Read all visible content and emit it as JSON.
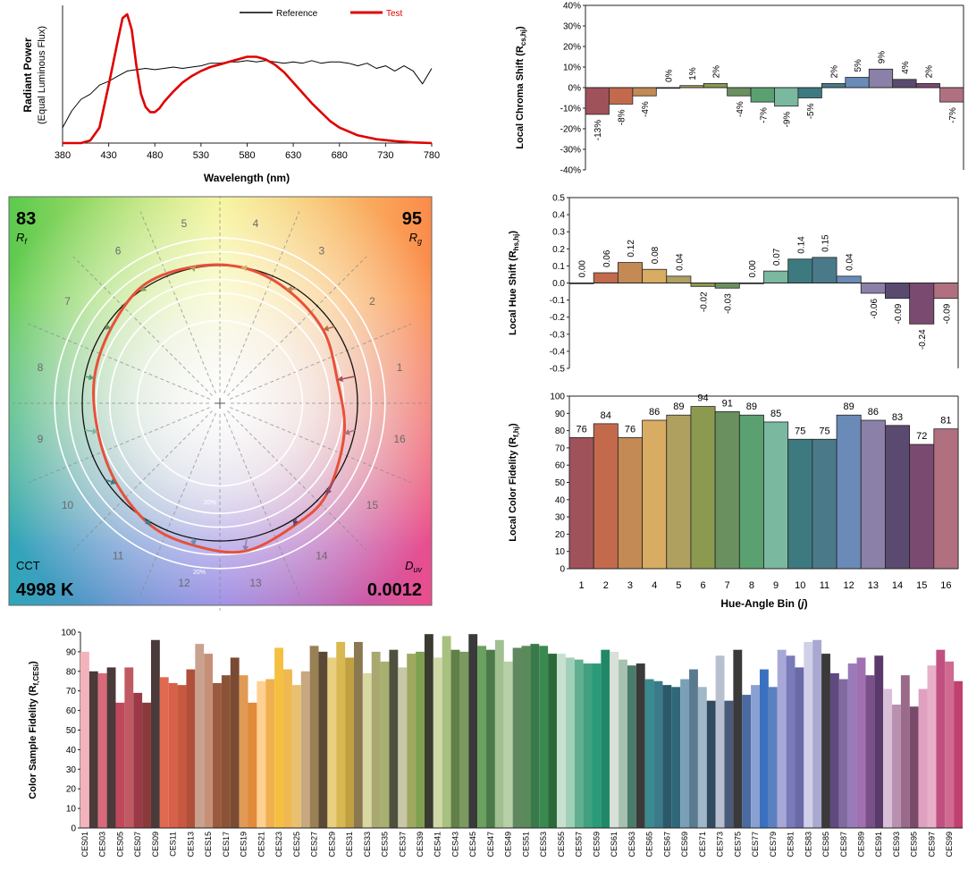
{
  "chart_data": [
    {
      "id": "spd",
      "type": "line",
      "ylabel": "Radiant Power",
      "ylabel_sub": "(Equal Luminous Flux)",
      "xlabel": "Wavelength (nm)",
      "xticks": [
        380,
        430,
        480,
        530,
        580,
        630,
        680,
        730,
        780
      ],
      "xlim": [
        380,
        780
      ],
      "legend": [
        "Reference",
        "Test"
      ],
      "colors": {
        "reference": "#000000",
        "test": "#e00000"
      },
      "series": [
        {
          "name": "Reference",
          "x": [
            380,
            390,
            400,
            410,
            420,
            430,
            440,
            450,
            460,
            470,
            480,
            490,
            500,
            510,
            520,
            530,
            540,
            550,
            560,
            570,
            580,
            590,
            600,
            610,
            620,
            630,
            640,
            650,
            660,
            670,
            680,
            690,
            700,
            710,
            720,
            730,
            740,
            750,
            760,
            770,
            780
          ],
          "y": [
            0.12,
            0.25,
            0.34,
            0.38,
            0.45,
            0.48,
            0.52,
            0.56,
            0.57,
            0.58,
            0.57,
            0.58,
            0.59,
            0.58,
            0.59,
            0.6,
            0.62,
            0.62,
            0.63,
            0.63,
            0.64,
            0.63,
            0.64,
            0.63,
            0.62,
            0.63,
            0.62,
            0.64,
            0.62,
            0.63,
            0.63,
            0.62,
            0.6,
            0.62,
            0.58,
            0.6,
            0.56,
            0.6,
            0.56,
            0.46,
            0.58
          ]
        },
        {
          "name": "Test",
          "x": [
            380,
            390,
            400,
            410,
            420,
            430,
            440,
            445,
            450,
            455,
            460,
            465,
            470,
            475,
            480,
            485,
            490,
            500,
            510,
            520,
            530,
            540,
            550,
            560,
            570,
            580,
            590,
            600,
            610,
            620,
            630,
            640,
            650,
            660,
            670,
            680,
            700,
            720,
            740,
            760,
            780
          ],
          "y": [
            0,
            0,
            0,
            0.02,
            0.12,
            0.45,
            0.8,
            0.97,
            1.0,
            0.88,
            0.6,
            0.38,
            0.28,
            0.24,
            0.24,
            0.27,
            0.32,
            0.4,
            0.47,
            0.52,
            0.56,
            0.59,
            0.61,
            0.63,
            0.65,
            0.67,
            0.67,
            0.65,
            0.61,
            0.55,
            0.47,
            0.39,
            0.31,
            0.24,
            0.17,
            0.12,
            0.06,
            0.03,
            0.015,
            0.005,
            0
          ]
        }
      ]
    },
    {
      "id": "vector",
      "type": "other",
      "hue_bins": [
        "1",
        "2",
        "3",
        "4",
        "5",
        "6",
        "7",
        "8",
        "9",
        "10",
        "11",
        "12",
        "13",
        "14",
        "15",
        "16"
      ],
      "rf_label": "R",
      "rf_sub": "f",
      "rf_value": "83",
      "rg_label": "R",
      "rg_sub": "g",
      "rg_value": "95",
      "cct_label": "CCT",
      "cct_value": "4998 K",
      "duv_label": "D",
      "duv_sub": "uv",
      "duv_value": "0.0012",
      "ring_label": "20%",
      "chroma_shift": [
        -0.13,
        -0.08,
        -0.04,
        0.0,
        0.01,
        0.02,
        -0.04,
        -0.07,
        -0.09,
        -0.05,
        0.02,
        0.05,
        0.09,
        0.04,
        0.02,
        -0.07
      ],
      "hue_shift": [
        0.0,
        0.06,
        0.12,
        0.08,
        0.04,
        -0.02,
        -0.03,
        0.0,
        0.07,
        0.14,
        0.15,
        0.04,
        -0.06,
        -0.09,
        -0.24,
        -0.09
      ]
    },
    {
      "id": "chroma",
      "type": "bar",
      "ylabel": "Local Chroma Shift (R",
      "ylabel_sub": "cs,hj",
      "ylabel_end": ")",
      "yticks": [
        "-40%",
        "-30%",
        "-20%",
        "-10%",
        "0%",
        "10%",
        "20%",
        "30%",
        "40%"
      ],
      "ylim": [
        -0.4,
        0.4
      ],
      "categories": [
        "1",
        "2",
        "3",
        "4",
        "5",
        "6",
        "7",
        "8",
        "9",
        "10",
        "11",
        "12",
        "13",
        "14",
        "15",
        "16"
      ],
      "values": [
        -0.13,
        -0.08,
        -0.04,
        0.0,
        0.01,
        0.02,
        -0.04,
        -0.07,
        -0.09,
        -0.05,
        0.02,
        0.05,
        0.09,
        0.04,
        0.02,
        -0.07
      ],
      "labels": [
        "-13%",
        "-8%",
        "-4%",
        "0%",
        "1%",
        "2%",
        "-4%",
        "-7%",
        "-9%",
        "-5%",
        "2%",
        "5%",
        "9%",
        "4%",
        "2%",
        "-7%"
      ]
    },
    {
      "id": "hue",
      "type": "bar",
      "ylabel": "Local Hue Shift (R",
      "ylabel_sub": "hs,hj",
      "ylabel_end": ")",
      "yticks": [
        "-0.5",
        "-0.4",
        "-0.3",
        "-0.2",
        "-0.1",
        "0.0",
        "0.1",
        "0.2",
        "0.3",
        "0.4",
        "0.5"
      ],
      "ylim": [
        -0.5,
        0.5
      ],
      "categories": [
        "1",
        "2",
        "3",
        "4",
        "5",
        "6",
        "7",
        "8",
        "9",
        "10",
        "11",
        "12",
        "13",
        "14",
        "15",
        "16"
      ],
      "values": [
        0.0,
        0.06,
        0.12,
        0.08,
        0.04,
        -0.02,
        -0.03,
        0.0,
        0.07,
        0.14,
        0.15,
        0.04,
        -0.06,
        -0.09,
        -0.24,
        -0.09
      ],
      "labels": [
        "0.00",
        "0.06",
        "0.12",
        "0.08",
        "0.04",
        "-0.02",
        "-0.03",
        "0.00",
        "0.07",
        "0.14",
        "0.15",
        "0.04",
        "-0.06",
        "-0.09",
        "-0.24",
        "-0.09"
      ]
    },
    {
      "id": "fidelity",
      "type": "bar",
      "ylabel": "Local Color Fidelity (R",
      "ylabel_sub": "f,hj",
      "ylabel_end": ")",
      "xlabel": "Hue-Angle Bin (",
      "xlabel_var": "j",
      "xlabel_end": ")",
      "yticks": [
        "0",
        "10",
        "20",
        "30",
        "40",
        "50",
        "60",
        "70",
        "80",
        "90",
        "100"
      ],
      "ylim": [
        0,
        100
      ],
      "categories": [
        "1",
        "2",
        "3",
        "4",
        "5",
        "6",
        "7",
        "8",
        "9",
        "10",
        "11",
        "12",
        "13",
        "14",
        "15",
        "16"
      ],
      "values": [
        76,
        84,
        76,
        86,
        89,
        94,
        91,
        89,
        85,
        75,
        75,
        89,
        86,
        83,
        72,
        81
      ],
      "labels": [
        "76",
        "84",
        "76",
        "86",
        "89",
        "94",
        "91",
        "89",
        "85",
        "75",
        "75",
        "89",
        "86",
        "83",
        "72",
        "81"
      ]
    },
    {
      "id": "ces",
      "type": "bar",
      "ylabel": "Color Sample Fidelity (R",
      "ylabel_sub": "f,CESi",
      "ylabel_end": ")",
      "yticks": [
        "0",
        "10",
        "20",
        "30",
        "40",
        "50",
        "60",
        "70",
        "80",
        "90",
        "100"
      ],
      "ylim": [
        0,
        100
      ],
      "tick_labels": [
        "CES01",
        "CES03",
        "CES05",
        "CES07",
        "CES09",
        "CES11",
        "CES13",
        "CES15",
        "CES17",
        "CES19",
        "CES21",
        "CES23",
        "CES25",
        "CES27",
        "CES29",
        "CES31",
        "CES33",
        "CES35",
        "CES37",
        "CES39",
        "CES41",
        "CES43",
        "CES45",
        "CES47",
        "CES49",
        "CES51",
        "CES53",
        "CES55",
        "CES57",
        "CES59",
        "CES61",
        "CES63",
        "CES65",
        "CES67",
        "CES69",
        "CES71",
        "CES73",
        "CES75",
        "CES77",
        "CES79",
        "CES81",
        "CES83",
        "CES85",
        "CES87",
        "CES89",
        "CES91",
        "CES93",
        "CES95",
        "CES97",
        "CES99"
      ],
      "values": [
        90,
        80,
        79,
        82,
        64,
        82,
        69,
        64,
        96,
        77,
        74,
        73,
        81,
        94,
        89,
        74,
        78,
        87,
        78,
        64,
        75,
        76,
        92,
        81,
        73,
        80,
        93,
        90,
        87,
        95,
        87,
        95,
        79,
        90,
        85,
        91,
        82,
        89,
        90,
        99,
        87,
        98,
        91,
        90,
        99,
        93,
        91,
        96,
        85,
        92,
        93,
        94,
        93,
        89,
        89,
        87,
        86,
        84,
        84,
        91,
        90,
        86,
        83,
        84,
        76,
        75,
        73,
        72,
        76,
        81,
        72,
        65,
        88,
        65,
        91,
        68,
        73,
        81,
        72,
        91,
        88,
        82,
        95,
        96,
        89,
        79,
        76,
        84,
        87,
        78,
        88,
        71,
        63,
        78,
        62,
        71,
        83,
        91,
        85,
        75
      ],
      "colors": [
        "#f4b3bc",
        "#4a3a3a",
        "#d96a7a",
        "#4a3a3a",
        "#c0485b",
        "#c05a62",
        "#9b3a46",
        "#8a3a3a",
        "#4a3a3a",
        "#e06a50",
        "#d8604a",
        "#c8583f",
        "#b0503a",
        "#c9a28f",
        "#c69078",
        "#9a5a3f",
        "#8a5336",
        "#7a4a33",
        "#e09a55",
        "#e08a3a",
        "#ffd08f",
        "#f0b050",
        "#f5c040",
        "#f0b850",
        "#e8c070",
        "#c8a880",
        "#9a8055",
        "#5a4a35",
        "#e8d080",
        "#d8b850",
        "#c0a040",
        "#8a7850",
        "#d8d8a0",
        "#a8a870",
        "#a8b070",
        "#505040",
        "#c8c8a8",
        "#a0a860",
        "#80a050",
        "#3a3a30",
        "#d0d8a8",
        "#a8c080",
        "#608048",
        "#7a9a60",
        "#3a3a3a",
        "#6aa060",
        "#4a7a48",
        "#a0c090",
        "#b8d0a8",
        "#608860",
        "#5a8a5a",
        "#3a7a4a",
        "#3a8a50",
        "#2a6a3a",
        "#c8e0d0",
        "#a0d0b8",
        "#60b090",
        "#40a080",
        "#2a9a78",
        "#208868",
        "#d8e0d8",
        "#a8c0b0",
        "#4a7a6a",
        "#3a3a3a",
        "#3a8a90",
        "#3a7a8a",
        "#2a5a6a",
        "#306878",
        "#7aa0b8",
        "#5a7a90",
        "#a0b8c8",
        "#304a60",
        "#b8c0d0",
        "#4a5a7a",
        "#3a3a3a",
        "#4a6aa0",
        "#8aa0d0",
        "#3a70c0",
        "#5a80c0",
        "#a8a8d8",
        "#7a7ab8",
        "#6a6aa8",
        "#d0d0e8",
        "#a8a8d0",
        "#3a3a3a",
        "#604a80",
        "#806aa0",
        "#9a7ab8",
        "#a070b0",
        "#7a508a",
        "#5a3a6a",
        "#d8c0d8",
        "#b890b0",
        "#9a6a8a",
        "#7a4a6a",
        "#e0a0c0",
        "#e8b0c8",
        "#c05080",
        "#d06a90",
        "#c04070"
      ]
    }
  ]
}
